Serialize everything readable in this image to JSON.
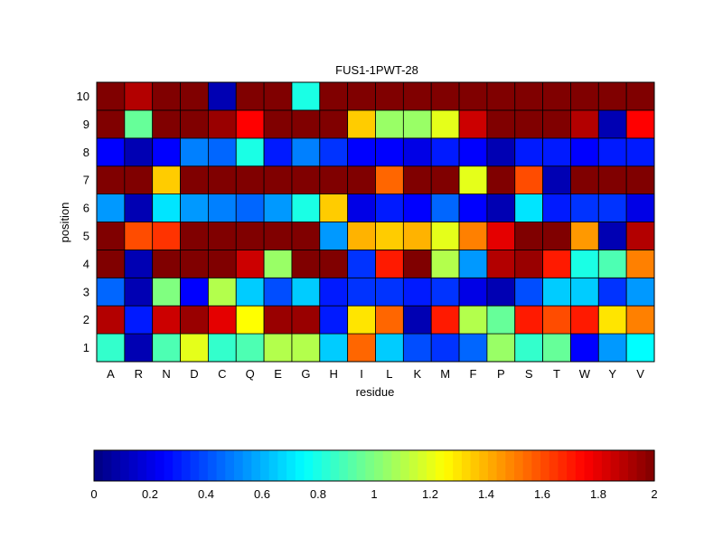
{
  "chart_data": {
    "type": "heatmap",
    "title": "FUS1-1PWT-28",
    "xlabel": "residue",
    "ylabel": "position",
    "x_categories": [
      "A",
      "R",
      "N",
      "D",
      "C",
      "Q",
      "E",
      "G",
      "H",
      "I",
      "L",
      "K",
      "M",
      "F",
      "P",
      "S",
      "T",
      "W",
      "Y",
      "V"
    ],
    "y_categories": [
      "1",
      "2",
      "3",
      "4",
      "5",
      "6",
      "7",
      "8",
      "9",
      "10"
    ],
    "values": [
      [
        0.85,
        0.1,
        0.9,
        1.2,
        0.85,
        0.9,
        1.1,
        1.1,
        0.65,
        1.55,
        0.65,
        0.4,
        0.35,
        0.45,
        1.05,
        0.85,
        0.95,
        0.25,
        0.55,
        0.75
      ],
      [
        1.9,
        0.3,
        1.85,
        1.95,
        1.8,
        1.25,
        1.95,
        1.95,
        0.3,
        1.3,
        1.55,
        0.1,
        1.7,
        1.1,
        0.95,
        1.7,
        1.6,
        1.7,
        1.3,
        1.5
      ],
      [
        0.45,
        0.1,
        1.0,
        0.25,
        1.1,
        0.65,
        0.4,
        0.65,
        0.3,
        0.35,
        0.35,
        0.3,
        0.35,
        0.2,
        0.1,
        0.4,
        0.65,
        0.65,
        0.35,
        0.55
      ],
      [
        2.0,
        0.1,
        2.0,
        2.0,
        2.0,
        1.85,
        1.05,
        2.0,
        2.0,
        0.35,
        1.7,
        2.0,
        1.1,
        0.55,
        1.9,
        1.95,
        1.7,
        0.8,
        0.9,
        1.5
      ],
      [
        2.0,
        1.6,
        1.65,
        2.0,
        2.0,
        2.0,
        2.0,
        2.0,
        0.55,
        1.4,
        1.35,
        1.4,
        1.2,
        1.5,
        1.8,
        2.0,
        2.0,
        1.45,
        0.1,
        1.9
      ],
      [
        0.55,
        0.1,
        0.7,
        0.55,
        0.5,
        0.45,
        0.55,
        0.8,
        1.35,
        0.2,
        0.3,
        0.25,
        0.45,
        0.25,
        0.1,
        0.7,
        0.3,
        0.35,
        0.35,
        0.2
      ],
      [
        2.0,
        2.0,
        1.35,
        2.0,
        2.0,
        2.0,
        2.0,
        2.0,
        2.0,
        2.0,
        1.55,
        2.0,
        2.0,
        1.2,
        2.0,
        1.6,
        0.1,
        2.0,
        2.0,
        2.0
      ],
      [
        0.25,
        0.1,
        0.25,
        0.5,
        0.45,
        0.8,
        0.3,
        0.5,
        0.35,
        0.25,
        0.25,
        0.2,
        0.3,
        0.25,
        0.1,
        0.3,
        0.3,
        0.25,
        0.3,
        0.3
      ],
      [
        2.0,
        0.95,
        2.0,
        2.0,
        1.95,
        1.75,
        2.0,
        2.0,
        2.0,
        1.35,
        1.05,
        1.05,
        1.2,
        1.85,
        2.0,
        2.0,
        2.0,
        1.9,
        0.1,
        1.75
      ],
      [
        2.0,
        1.9,
        2.0,
        2.0,
        0.1,
        2.0,
        2.0,
        0.8,
        2.0,
        2.0,
        2.0,
        2.0,
        2.0,
        2.0,
        2.0,
        2.0,
        2.0,
        2.0,
        2.0,
        2.0
      ]
    ],
    "colormap": "jet",
    "colorbar": {
      "min": 0,
      "max": 2,
      "levels": 64,
      "ticks": [
        "0",
        "0.2",
        "0.4",
        "0.6",
        "0.8",
        "1",
        "1.2",
        "1.4",
        "1.6",
        "1.8",
        "2"
      ]
    },
    "ylim": [
      0,
      2
    ]
  }
}
